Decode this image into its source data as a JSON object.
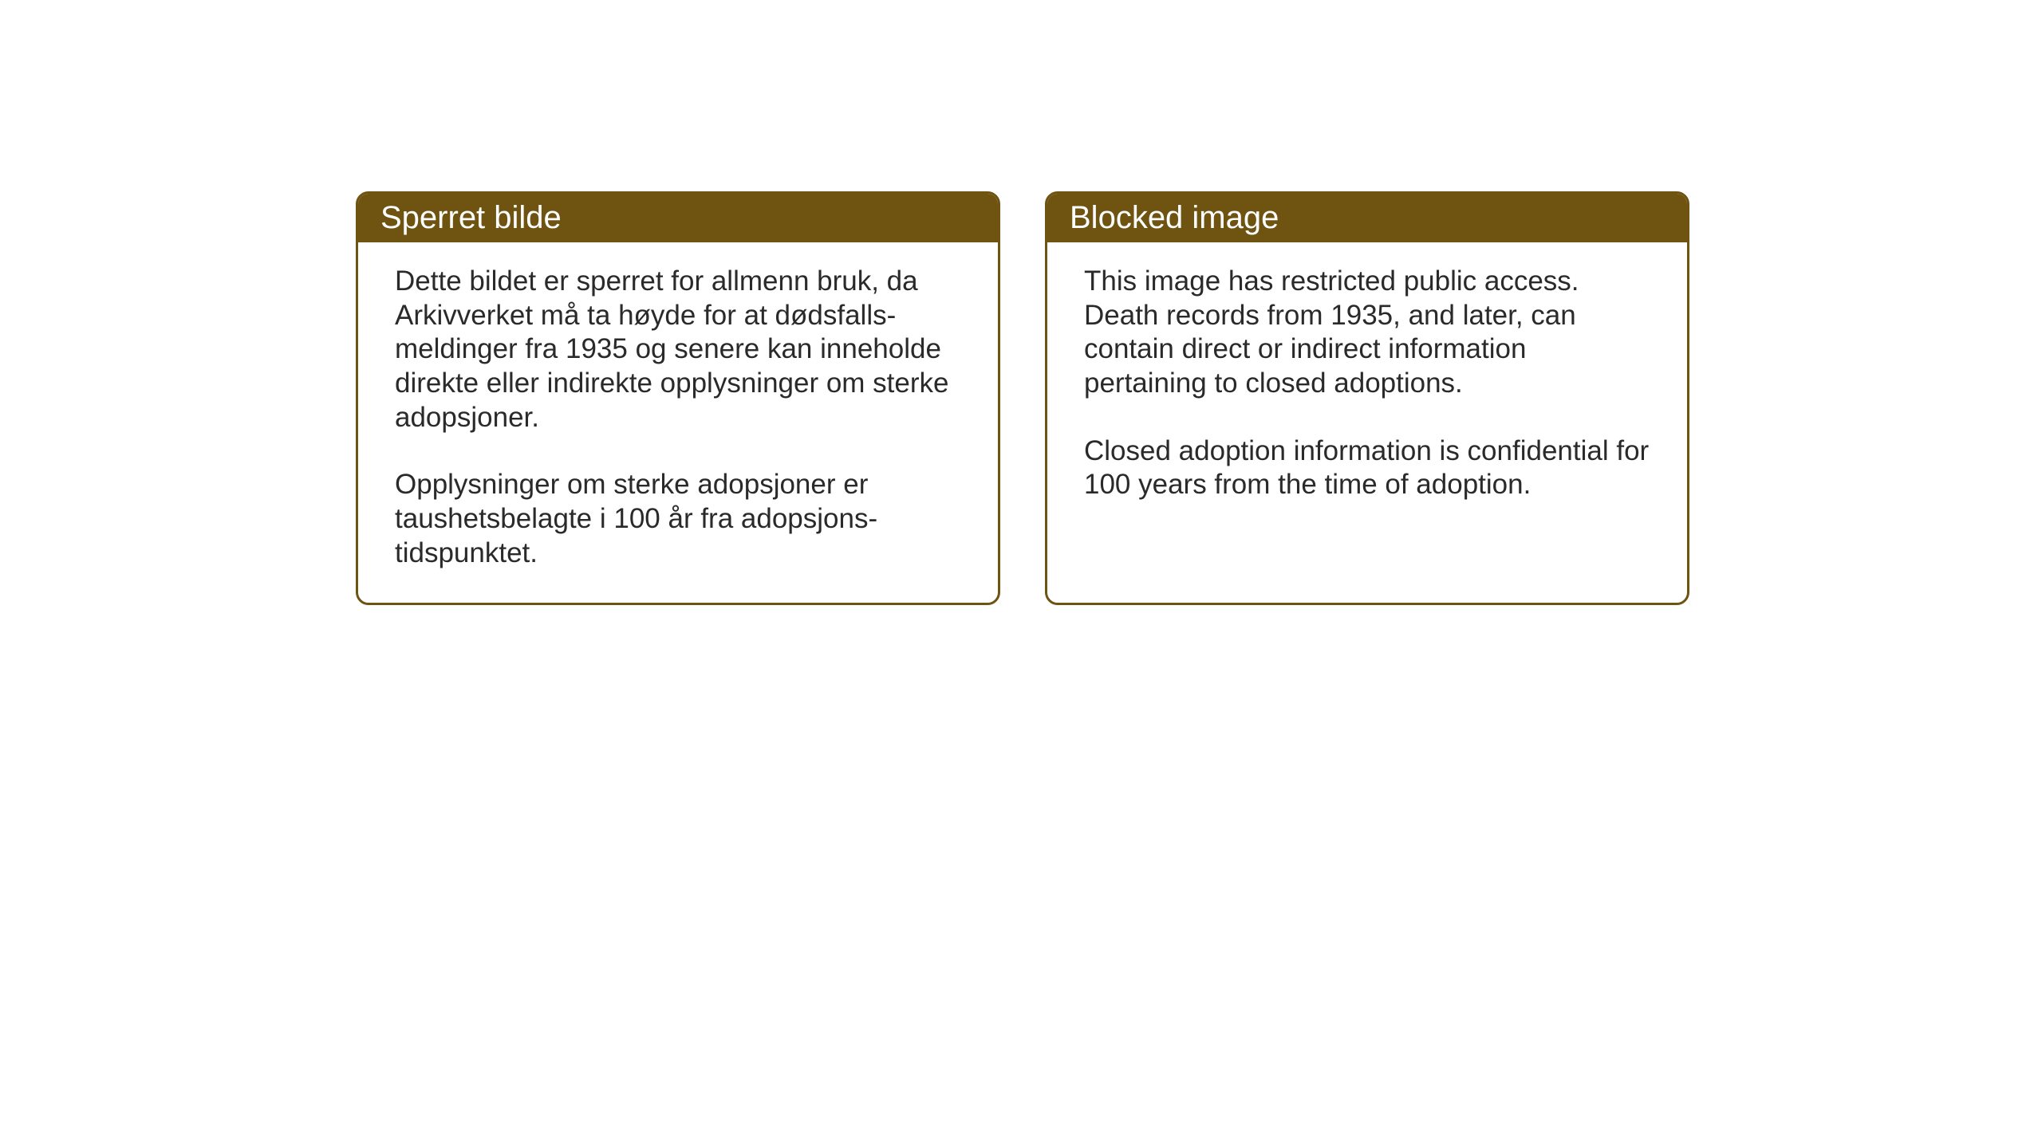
{
  "boxes": {
    "norwegian": {
      "title": "Sperret bilde",
      "paragraph1": "Dette bildet er sperret for allmenn bruk, da Arkivverket må ta høyde for at dødsfalls-meldinger fra 1935 og senere kan inneholde direkte eller indirekte opplysninger om sterke adopsjoner.",
      "paragraph2": "Opplysninger om sterke adopsjoner er taushetsbelagte i 100 år fra adopsjons-tidspunktet."
    },
    "english": {
      "title": "Blocked image",
      "paragraph1": "This image has restricted public access. Death records from 1935, and later, can contain direct or indirect information pertaining to closed adoptions.",
      "paragraph2": "Closed adoption information is confidential for 100 years from the time of adoption."
    }
  },
  "styling": {
    "header_background": "#6e5311",
    "header_text_color": "#ffffff",
    "border_color": "#6e5311",
    "body_text_color": "#2a2a2a",
    "background_color": "#ffffff",
    "title_fontsize": 40,
    "body_fontsize": 35,
    "border_radius": 16,
    "border_width": 3
  }
}
